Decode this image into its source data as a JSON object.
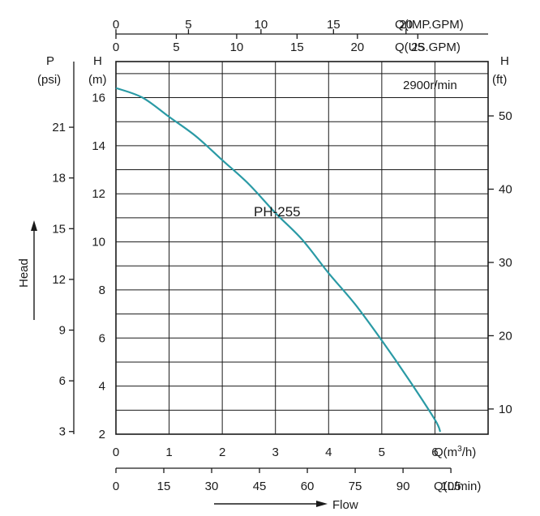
{
  "chart_data": {
    "type": "line",
    "annotation": "2900r/min",
    "series": [
      {
        "name": "PH-255",
        "color": "#2a9aa5",
        "points": [
          [
            0,
            16.4
          ],
          [
            0.5,
            16.0
          ],
          [
            1,
            15.2
          ],
          [
            1.5,
            14.4
          ],
          [
            2,
            13.4
          ],
          [
            2.5,
            12.4
          ],
          [
            3,
            11.2
          ],
          [
            3.5,
            10.1
          ],
          [
            4,
            8.7
          ],
          [
            4.5,
            7.4
          ],
          [
            5,
            5.9
          ],
          [
            5.5,
            4.3
          ],
          [
            6,
            2.6
          ],
          [
            6.1,
            2.1
          ]
        ]
      }
    ],
    "axes": {
      "x_main": {
        "label": "Q(m³/h)",
        "label_base": "Q(m",
        "label_sup": "3",
        "label_tail": "/h)",
        "range": [
          0,
          7
        ],
        "ticks": [
          "0",
          "1",
          "2",
          "3",
          "4",
          "5",
          "6"
        ]
      },
      "x_lmin": {
        "label": "Q(L/min)",
        "ticks": [
          "0",
          "15",
          "30",
          "45",
          "60",
          "75",
          "90",
          "105"
        ],
        "values": [
          0,
          15,
          30,
          45,
          60,
          75,
          90,
          105
        ]
      },
      "x_usgpm": {
        "label": "Q(US.GPM)",
        "ticks": [
          "0",
          "5",
          "10",
          "15",
          "20",
          "25"
        ],
        "values": [
          0,
          5,
          10,
          15,
          20,
          25
        ]
      },
      "x_impgpm": {
        "label": "Q(IMP.GPM)",
        "ticks": [
          "0",
          "5",
          "10",
          "15",
          "20"
        ],
        "values": [
          0,
          5,
          10,
          15,
          20
        ]
      },
      "y_main": {
        "unit_top": "H",
        "unit_bottom": "(m)",
        "range": [
          2,
          17.5
        ],
        "ticks": [
          "2",
          "4",
          "6",
          "8",
          "10",
          "12",
          "14",
          "16"
        ],
        "values": [
          2,
          4,
          6,
          8,
          10,
          12,
          14,
          16
        ]
      },
      "y_psi": {
        "unit_top": "P",
        "unit_bottom": "(psi)",
        "ticks": [
          "3",
          "6",
          "9",
          "12",
          "15",
          "18",
          "21"
        ],
        "values": [
          3,
          6,
          9,
          12,
          15,
          18,
          21
        ]
      },
      "y_ft": {
        "unit_top": "H",
        "unit_bottom": "(ft)",
        "ticks": [
          "10",
          "20",
          "30",
          "40",
          "50"
        ],
        "values": [
          10,
          20,
          30,
          40,
          50
        ]
      }
    },
    "head_label": "Head",
    "flow_label": "Flow",
    "grid": true
  }
}
